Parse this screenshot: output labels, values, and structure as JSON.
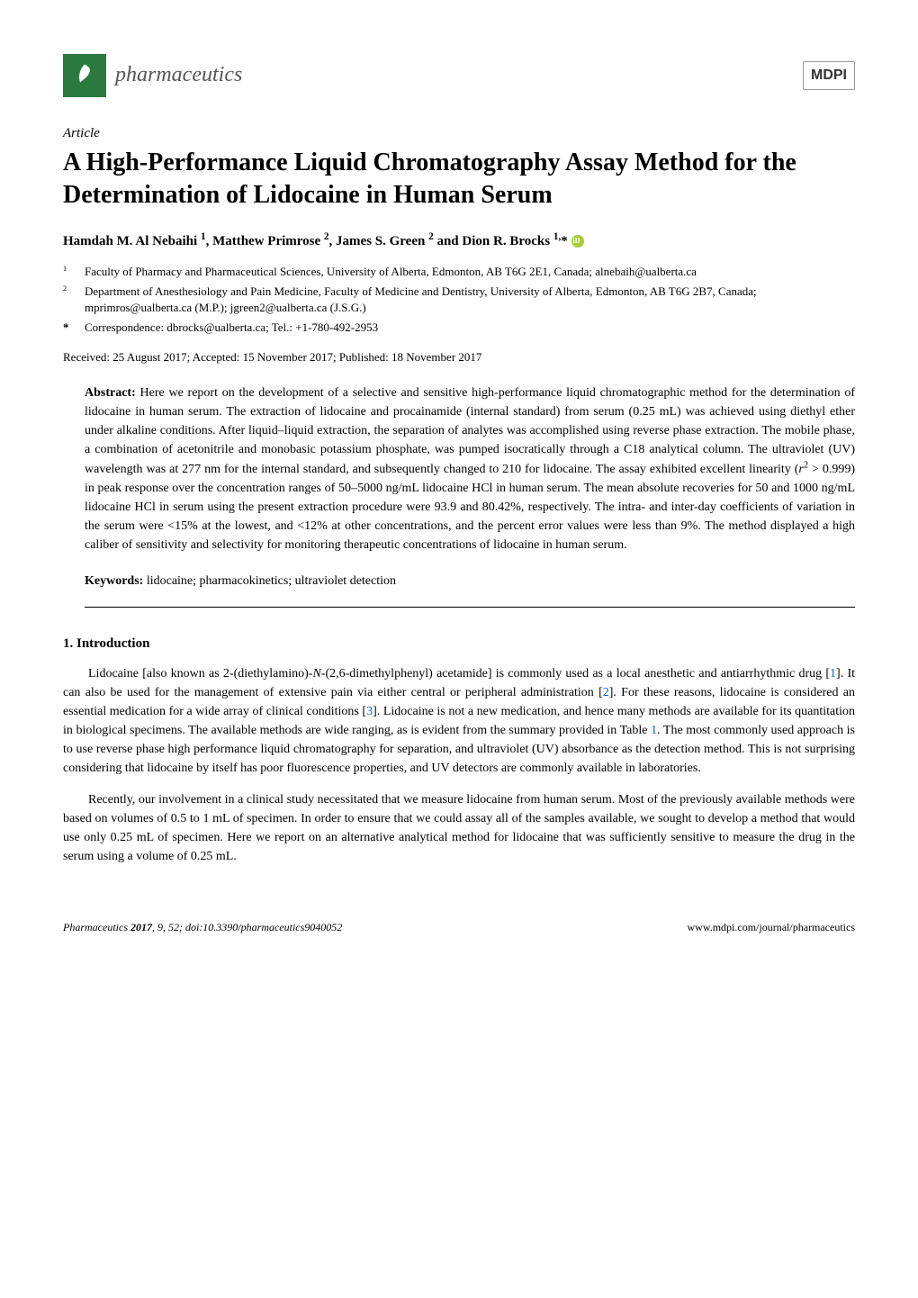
{
  "header": {
    "journal_name": "pharmaceutics",
    "publisher": "MDPI"
  },
  "article": {
    "type": "Article",
    "title": "A High-Performance Liquid Chromatography Assay Method for the Determination of Lidocaine in Human Serum",
    "authors_html": "Hamdah M. Al Nebaihi <sup>1</sup>, Matthew Primrose <sup>2</sup>, James S. Green <sup>2</sup> and Dion R. Brocks <sup>1,</sup>*"
  },
  "affiliations": [
    {
      "num": "1",
      "text": "Faculty of Pharmacy and Pharmaceutical Sciences, University of Alberta, Edmonton, AB T6G 2E1, Canada; alnebaih@ualberta.ca"
    },
    {
      "num": "2",
      "text": "Department of Anesthesiology and Pain Medicine, Faculty of Medicine and Dentistry, University of Alberta, Edmonton, AB T6G 2B7, Canada; mprimros@ualberta.ca (M.P.); jgreen2@ualberta.ca (J.S.G.)"
    }
  ],
  "correspondence": {
    "marker": "*",
    "text": "Correspondence: dbrocks@ualberta.ca; Tel.: +1-780-492-2953"
  },
  "dates": "Received: 25 August 2017; Accepted: 15 November 2017; Published: 18 November 2017",
  "abstract": {
    "label": "Abstract:",
    "text_html": "Here we report on the development of a selective and sensitive high-performance liquid chromatographic method for the determination of lidocaine in human serum. The extraction of lidocaine and procainamide (internal standard) from serum (0.25 mL) was achieved using diethyl ether under alkaline conditions. After liquid–liquid extraction, the separation of analytes was accomplished using reverse phase extraction. The mobile phase, a combination of acetonitrile and monobasic potassium phosphate, was pumped isocratically through a C18 analytical column. The ultraviolet (UV) wavelength was at 277 nm for the internal standard, and subsequently changed to 210 for lidocaine. The assay exhibited excellent linearity (<span class=\"italic\">r</span><sup>2</sup> > 0.999) in peak response over the concentration ranges of 50–5000 ng/mL lidocaine HCl in human serum. The mean absolute recoveries for 50 and 1000 ng/mL lidocaine HCl in serum using the present extraction procedure were 93.9 and 80.42%, respectively. The intra- and inter-day coefficients of variation in the serum were <15% at the lowest, and <12% at other concentrations, and the percent error values were less than 9%. The method displayed a high caliber of sensitivity and selectivity for monitoring therapeutic concentrations of lidocaine in human serum."
  },
  "keywords": {
    "label": "Keywords:",
    "text": "lidocaine; pharmacokinetics; ultraviolet detection"
  },
  "sections": {
    "intro": {
      "heading": "1. Introduction",
      "paragraphs_html": [
        "Lidocaine [also known as 2-(diethylamino)-<span class=\"italic\">N</span>-(2,6-dimethylphenyl) acetamide] is commonly used as a local anesthetic and antiarrhythmic drug [<span class=\"ref\">1</span>]. It can also be used for the management of extensive pain via either central or peripheral administration [<span class=\"ref\">2</span>]. For these reasons, lidocaine is considered an essential medication for a wide array of clinical conditions [<span class=\"ref\">3</span>]. Lidocaine is not a new medication, and hence many methods are available for its quantitation in biological specimens. The available methods are wide ranging, as is evident from the summary provided in Table <span class=\"ref\">1</span>. The most commonly used approach is to use reverse phase high performance liquid chromatography for separation, and ultraviolet (UV) absorbance as the detection method. This is not surprising considering that lidocaine by itself has poor fluorescence properties, and UV detectors are commonly available in laboratories.",
        "Recently, our involvement in a clinical study necessitated that we measure lidocaine from human serum. Most of the previously available methods were based on volumes of 0.5 to 1 mL of specimen. In order to ensure that we could assay all of the samples available, we sought to develop a method that would use only 0.25 mL of specimen. Here we report on an alternative analytical method for lidocaine that was sufficiently sensitive to measure the drug in the serum using a volume of 0.25 mL."
      ]
    }
  },
  "footer": {
    "left_html": "<span class=\"italic\">Pharmaceutics</span> <b>2017</b>, <span class=\"italic\">9</span>, 52; doi:10.3390/pharmaceutics9040052",
    "right": "www.mdpi.com/journal/pharmaceutics"
  }
}
